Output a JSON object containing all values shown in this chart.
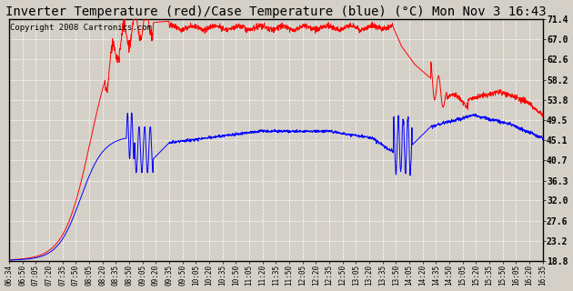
{
  "title": "Inverter Temperature (red)/Case Temperature (blue) (°C) Mon Nov 3 16:43",
  "copyright": "Copyright 2008 Cartronics.com",
  "yticks": [
    18.8,
    23.2,
    27.6,
    32.0,
    36.3,
    40.7,
    45.1,
    49.5,
    53.8,
    58.2,
    62.6,
    67.0,
    71.4
  ],
  "ylim": [
    18.8,
    71.4
  ],
  "x_labels": [
    "06:34",
    "06:50",
    "07:05",
    "07:20",
    "07:35",
    "07:50",
    "08:05",
    "08:20",
    "08:35",
    "08:50",
    "09:05",
    "09:20",
    "09:35",
    "09:50",
    "10:05",
    "10:20",
    "10:35",
    "10:50",
    "11:05",
    "11:20",
    "11:35",
    "11:50",
    "12:05",
    "12:20",
    "12:35",
    "12:50",
    "13:05",
    "13:20",
    "13:35",
    "13:50",
    "14:05",
    "14:20",
    "14:35",
    "14:50",
    "15:05",
    "15:20",
    "15:35",
    "15:50",
    "16:05",
    "16:20",
    "16:35"
  ],
  "bg_color": "#d4d0c8",
  "plot_bg": "#d4d0c8",
  "grid_color": "#ffffff",
  "line_red": "#ff0000",
  "line_blue": "#0000ff",
  "title_fontsize": 10,
  "copyright_fontsize": 6.5
}
